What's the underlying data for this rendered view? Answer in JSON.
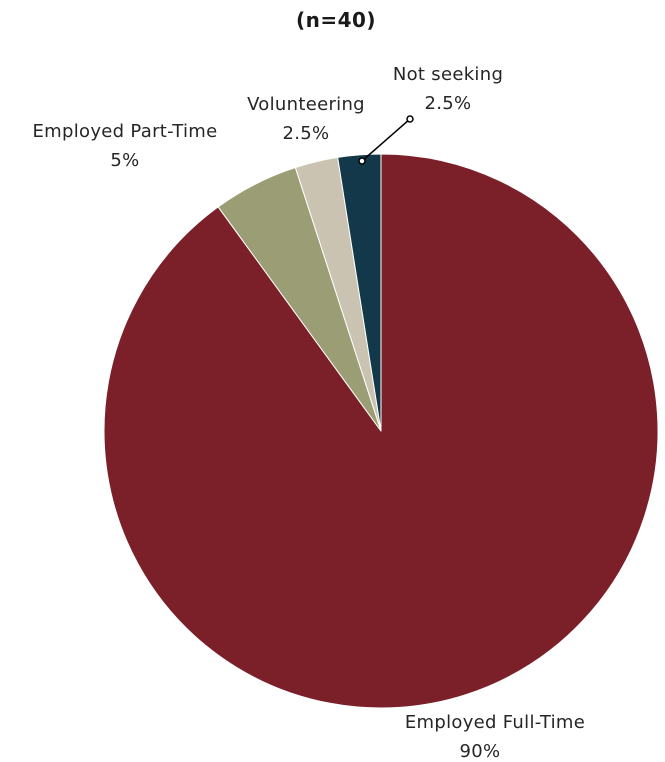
{
  "chart_data": {
    "type": "pie",
    "subtitle": "(n=40)",
    "start_angle_deg": 0,
    "direction": "clockwise",
    "slices": [
      {
        "label": "Employed Full-Time",
        "value": 90,
        "value_label": "90%",
        "color": "#7b2029"
      },
      {
        "label": "Employed Part-Time",
        "value": 5,
        "value_label": "5%",
        "color": "#9b9e74"
      },
      {
        "label": "Volunteering",
        "value": 2.5,
        "value_label": "2.5%",
        "color": "#cbc3b2"
      },
      {
        "label": "Not seeking",
        "value": 2.5,
        "value_label": "2.5%",
        "color": "#12384a"
      }
    ],
    "legend": "none",
    "slice_border_color": "#ffffff"
  }
}
